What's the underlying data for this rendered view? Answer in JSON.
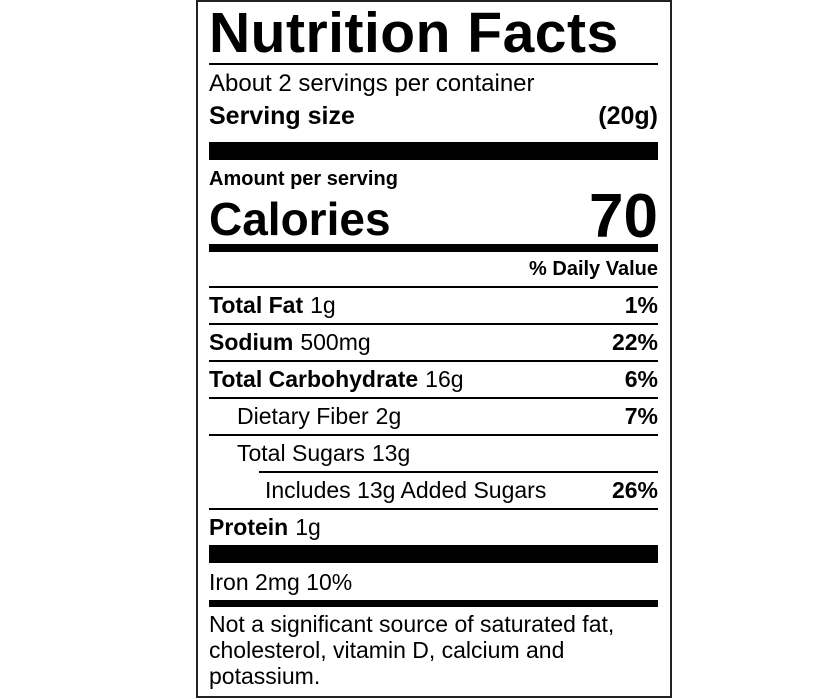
{
  "label": {
    "title": "Nutrition Facts",
    "servings_per_container": "About 2 servings per container",
    "serving_size_label": "Serving size",
    "serving_size_value": "(20g)",
    "amount_per_serving": "Amount per serving",
    "calories_label": "Calories",
    "calories_value": "70",
    "daily_value_header": "% Daily Value",
    "rows": [
      {
        "name": "Total Fat",
        "amount": "1g",
        "pct": "1%"
      },
      {
        "name": "Sodium",
        "amount": "500mg",
        "pct": "22%"
      },
      {
        "name": "Total Carbohydrate",
        "amount": "16g",
        "pct": "6%"
      },
      {
        "name": "Dietary Fiber",
        "amount": "2g",
        "pct": "7%"
      },
      {
        "name": "Total Sugars",
        "amount": "13g",
        "pct": ""
      },
      {
        "name": "Includes 13g Added Sugars",
        "amount": "",
        "pct": "26%"
      },
      {
        "name": "Protein",
        "amount": "1g",
        "pct": ""
      }
    ],
    "iron_line": "Iron 2mg 10%",
    "footnote_lines": [
      "Not a significant source of saturated fat,",
      "cholesterol, vitamin D, calcium and",
      "potassium."
    ],
    "colors": {
      "text": "#000000",
      "background": "#ffffff",
      "divider": "#000000"
    }
  }
}
